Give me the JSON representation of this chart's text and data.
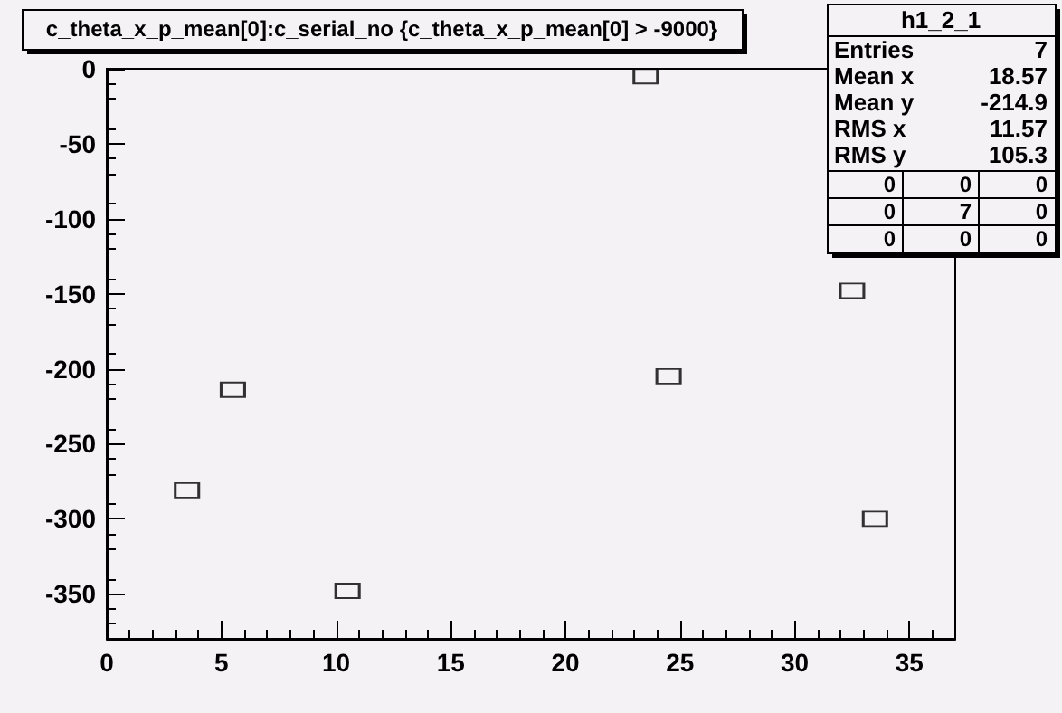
{
  "chart_data": {
    "type": "scatter",
    "title": "c_theta_x_p_mean[0]:c_serial_no {c_theta_x_p_mean[0] > -9000}",
    "series": [
      {
        "color": "#000000",
        "x": [
          3.5,
          5.5,
          10.5,
          23.5,
          24.5,
          32.5,
          33.5
        ],
        "values": [
          -281,
          -214,
          -348,
          -5,
          -205,
          -148,
          -300
        ]
      }
    ],
    "xlim": [
      0,
      37
    ],
    "xticks": [
      0,
      5,
      10,
      15,
      20,
      25,
      30,
      35
    ],
    "ylim": [
      -380,
      0
    ],
    "yticks": [
      -350,
      -300,
      -250,
      -200,
      -150,
      -100,
      -50,
      0
    ],
    "marker": "square",
    "grid": false,
    "annotations": [
      "h1_2_1",
      "Entries",
      "7",
      "Mean x",
      "18.57",
      "Mean y",
      "-214.9",
      "RMS x",
      "11.57",
      "RMS y",
      "105.3",
      "0",
      "0",
      "0",
      "0",
      "7",
      "0",
      "0",
      "0",
      "0"
    ]
  }
}
